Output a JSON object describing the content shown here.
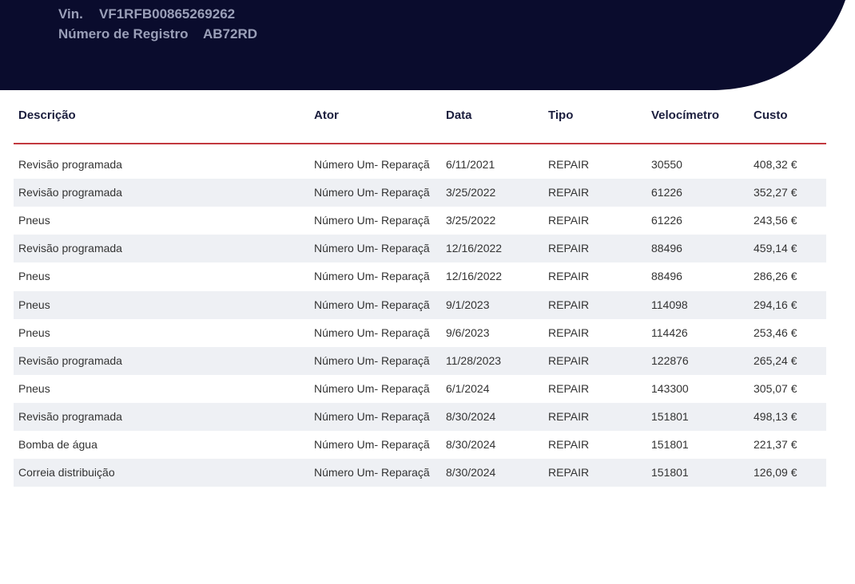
{
  "header": {
    "vin_label": "Vin.",
    "vin": "VF1RFB00865269262",
    "registration_label": "Número de Registro",
    "registration": "AB72RD"
  },
  "table": {
    "columns": [
      "Descrição",
      "Ator",
      "Data",
      "Tipo",
      "Velocímetro",
      "Custo"
    ],
    "rows": [
      [
        "Revisão programada",
        "Número Um- Reparaçã",
        "6/11/2021",
        "REPAIR",
        "30550",
        "408,32 €"
      ],
      [
        "Revisão programada",
        "Número Um- Reparaçã",
        "3/25/2022",
        "REPAIR",
        "61226",
        "352,27 €"
      ],
      [
        "Pneus",
        "Número Um- Reparaçã",
        "3/25/2022",
        "REPAIR",
        "61226",
        "243,56 €"
      ],
      [
        "Revisão programada",
        "Número Um- Reparaçã",
        "12/16/2022",
        "REPAIR",
        "88496",
        "459,14 €"
      ],
      [
        "Pneus",
        "Número Um- Reparaçã",
        "12/16/2022",
        "REPAIR",
        "88496",
        "286,26 €"
      ],
      [
        "Pneus",
        "Número Um- Reparaçã",
        "9/1/2023",
        "REPAIR",
        "114098",
        "294,16 €"
      ],
      [
        "Pneus",
        "Número Um- Reparaçã",
        "9/6/2023",
        "REPAIR",
        "114426",
        "253,46 €"
      ],
      [
        "Revisão programada",
        "Número Um- Reparaçã",
        "11/28/2023",
        "REPAIR",
        "122876",
        "265,24 €"
      ],
      [
        "Pneus",
        "Número Um- Reparaçã",
        "6/1/2024",
        "REPAIR",
        "143300",
        "305,07 €"
      ],
      [
        "Revisão programada",
        "Número Um- Reparaçã",
        "8/30/2024",
        "REPAIR",
        "151801",
        "498,13 €"
      ],
      [
        "Bomba de água",
        "Número Um- Reparaçã",
        "8/30/2024",
        "REPAIR",
        "151801",
        "221,37 €"
      ],
      [
        "Correia distribuição",
        "Número Um- Reparaçã",
        "8/30/2024",
        "REPAIR",
        "151801",
        "126,09 €"
      ]
    ]
  }
}
